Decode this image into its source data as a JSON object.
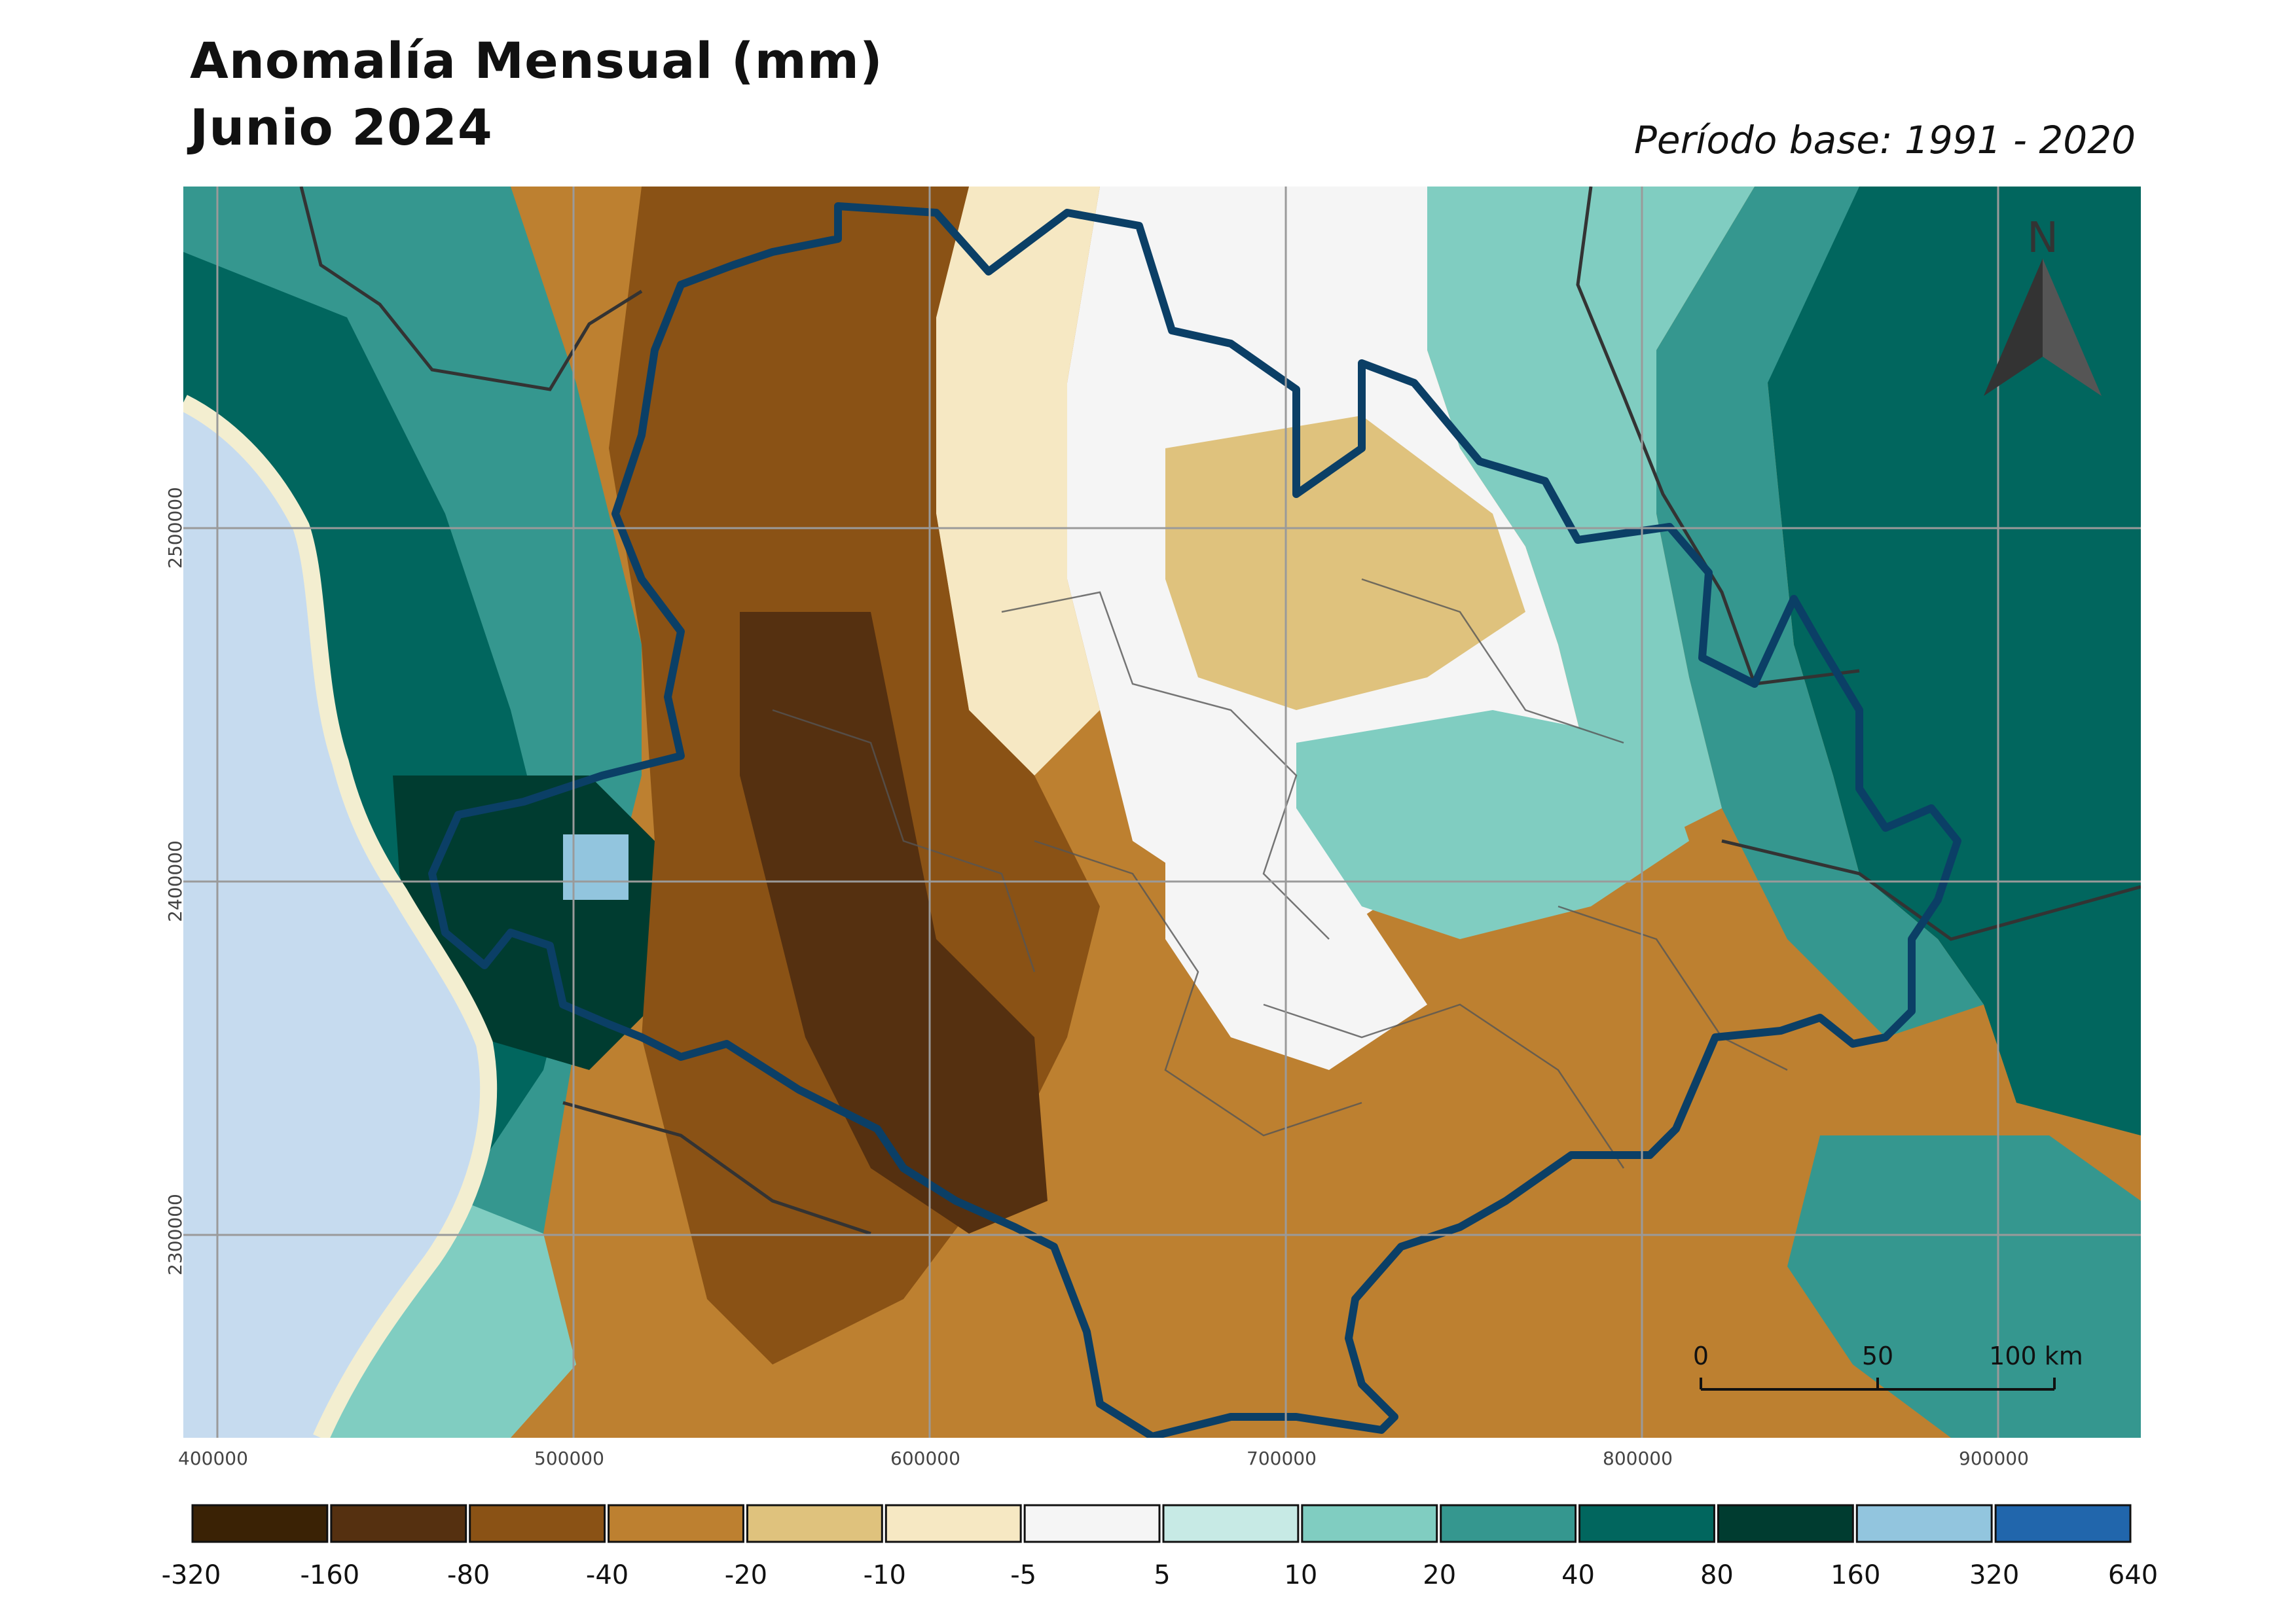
{
  "title_line1": "Anomalía Mensual (mm)",
  "title_line2": "Junio 2024",
  "base_period": "Período base: 1991 - 2020",
  "north_label": "N",
  "scale_bar": {
    "labels": [
      "0",
      "50",
      "100 km"
    ]
  },
  "x_ticks": [
    "400000",
    "500000",
    "600000",
    "700000",
    "800000",
    "900000"
  ],
  "y_ticks": [
    "2500000",
    "2400000",
    "2300000"
  ],
  "legend": {
    "labels": [
      "-320",
      "-160",
      "-80",
      "-40",
      "-20",
      "-10",
      "-5",
      "5",
      "10",
      "20",
      "40",
      "80",
      "160",
      "320",
      "640"
    ],
    "colors": [
      "#3a2205",
      "#553010",
      "#8a5215",
      "#bd8030",
      "#dfc27d",
      "#f6e8c3",
      "#f5f5f5",
      "#c7eae5",
      "#80cdc1",
      "#35978f",
      "#01665e",
      "#003c30",
      "#92c5de",
      "#2166ac"
    ]
  },
  "colors": {
    "sea": "#c6dbef",
    "coast": "#f3eed0",
    "grid": "#9a9a9a",
    "state_border": "#0b3f66"
  }
}
